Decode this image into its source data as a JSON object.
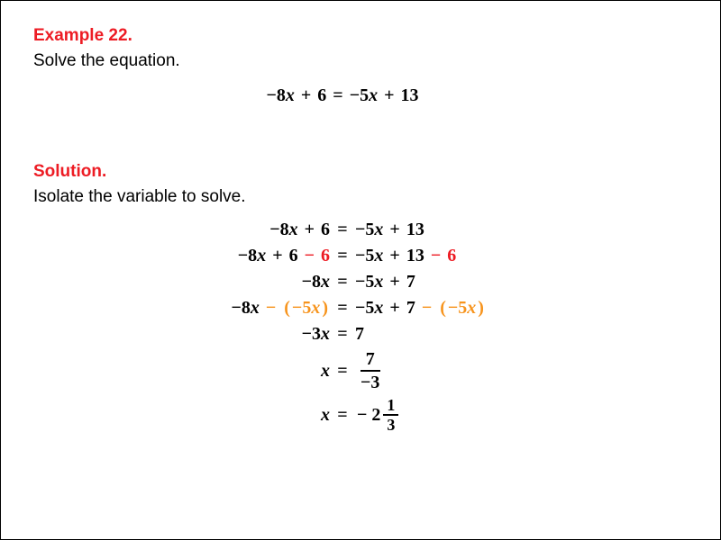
{
  "heading": {
    "label": "Example 22.",
    "color": "#ed1c24"
  },
  "prompt": "Solve the equation.",
  "main_equation": {
    "lhs": "−8x + 6",
    "rhs": "−5x + 13"
  },
  "solution_heading": "Solution.",
  "solution_text": "Isolate the variable to solve.",
  "colors": {
    "heading_red": "#ed1c24",
    "highlight_red": "#ed1c24",
    "highlight_orange": "#f7941d",
    "text_black": "#000000",
    "background": "#ffffff"
  },
  "typography": {
    "body_font": "Arial",
    "math_font": "Times New Roman",
    "heading_size_pt": 14,
    "math_size_pt": 15,
    "math_weight": "bold",
    "math_style": "italic"
  },
  "steps": [
    {
      "lhs_parts": [
        {
          "text": "−8",
          "style": "num black"
        },
        {
          "text": "x",
          "style": "var black"
        },
        {
          "text": " + ",
          "style": "op black"
        },
        {
          "text": "6",
          "style": "num black"
        }
      ],
      "rhs_parts": [
        {
          "text": "−5",
          "style": "num black"
        },
        {
          "text": "x",
          "style": "var black"
        },
        {
          "text": " + ",
          "style": "op black"
        },
        {
          "text": "13",
          "style": "num black"
        }
      ]
    },
    {
      "lhs_parts": [
        {
          "text": "−8",
          "style": "num black"
        },
        {
          "text": "x",
          "style": "var black"
        },
        {
          "text": " + ",
          "style": "op black"
        },
        {
          "text": "6",
          "style": "num black"
        },
        {
          "text": " − ",
          "style": "op red"
        },
        {
          "text": "6",
          "style": "num red"
        }
      ],
      "rhs_parts": [
        {
          "text": "−5",
          "style": "num black"
        },
        {
          "text": "x",
          "style": "var black"
        },
        {
          "text": " + ",
          "style": "op black"
        },
        {
          "text": "13",
          "style": "num black"
        },
        {
          "text": " − ",
          "style": "op red"
        },
        {
          "text": "6",
          "style": "num red"
        }
      ]
    },
    {
      "lhs_parts": [
        {
          "text": "−8",
          "style": "num black"
        },
        {
          "text": "x",
          "style": "var black"
        }
      ],
      "rhs_parts": [
        {
          "text": "−5",
          "style": "num black"
        },
        {
          "text": "x",
          "style": "var black"
        },
        {
          "text": " + ",
          "style": "op black"
        },
        {
          "text": "7",
          "style": "num black"
        }
      ]
    },
    {
      "lhs_parts": [
        {
          "text": "−8",
          "style": "num black"
        },
        {
          "text": "x",
          "style": "var black"
        },
        {
          "text": " − ",
          "style": "op orange"
        },
        {
          "text": "(",
          "style": "op orange"
        },
        {
          "text": "−5",
          "style": "num orange"
        },
        {
          "text": "x",
          "style": "var orange"
        },
        {
          "text": ")",
          "style": "op orange"
        }
      ],
      "rhs_parts": [
        {
          "text": "−5",
          "style": "num black"
        },
        {
          "text": "x",
          "style": "var black"
        },
        {
          "text": " + ",
          "style": "op black"
        },
        {
          "text": "7",
          "style": "num black"
        },
        {
          "text": " − ",
          "style": "op orange"
        },
        {
          "text": "(",
          "style": "op orange"
        },
        {
          "text": "−5",
          "style": "num orange"
        },
        {
          "text": "x",
          "style": "var orange"
        },
        {
          "text": ")",
          "style": "op orange"
        }
      ]
    },
    {
      "lhs_parts": [
        {
          "text": "−3",
          "style": "num black"
        },
        {
          "text": "x",
          "style": "var black"
        }
      ],
      "rhs_parts": [
        {
          "text": "7",
          "style": "num black"
        }
      ]
    }
  ],
  "frac_step": {
    "lhs": "x",
    "numerator": "7",
    "denominator": "−3"
  },
  "final_step": {
    "lhs": "x",
    "sign": "−",
    "whole": "2",
    "frac_top": "1",
    "frac_bot": "3"
  }
}
